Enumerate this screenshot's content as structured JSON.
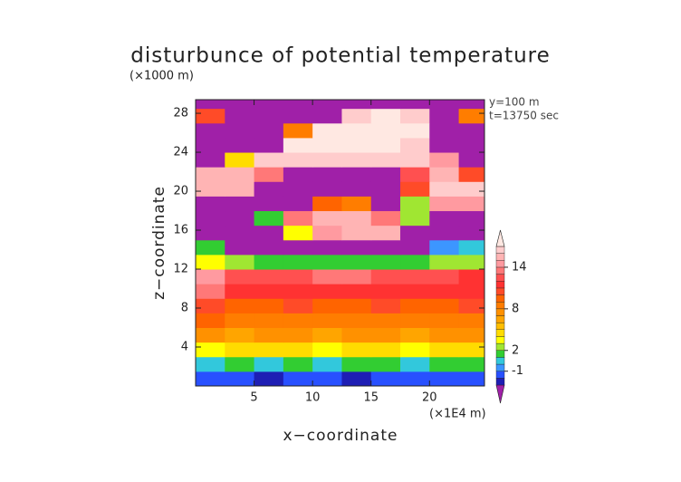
{
  "chart_data": {
    "type": "contour",
    "title": "disturbunce of potential temperature",
    "y_unit": "(×1000 m)",
    "x_unit": "(×1E4 m)",
    "annotations": [
      "y=100 m",
      "t=13750 sec"
    ],
    "x_label": "x−coordinate",
    "y_label": "z−coordinate",
    "xlim": [
      0,
      24.7
    ],
    "ylim": [
      0,
      29.4
    ],
    "xticks": [
      5,
      10,
      15,
      20
    ],
    "yticks": [
      4,
      8,
      12,
      16,
      20,
      24,
      28
    ],
    "x_edges": [
      0,
      2.5,
      5,
      7.5,
      10,
      12.5,
      15,
      17.5,
      20,
      22.5,
      25
    ],
    "y_edges": [
      0,
      1.5,
      3,
      4.5,
      6,
      7.5,
      9,
      10.5,
      12,
      13.5,
      15,
      16.5,
      18,
      19.5,
      21,
      22.5,
      24,
      25.5,
      27,
      28.5,
      30
    ],
    "z": [
      [
        -2,
        -2,
        -3,
        -2,
        -2,
        -3,
        -2,
        -2,
        -2,
        -2
      ],
      [
        0,
        1,
        0,
        1,
        0,
        1,
        1,
        0,
        1,
        1
      ],
      [
        3,
        4,
        4,
        4,
        3,
        4,
        4,
        3,
        4,
        4
      ],
      [
        7,
        6,
        7,
        7,
        6,
        7,
        7,
        6,
        7,
        7
      ],
      [
        9,
        8,
        8,
        8,
        8,
        8,
        8,
        8,
        8,
        8
      ],
      [
        10,
        9,
        9,
        10,
        9,
        9,
        10,
        9,
        9,
        10
      ],
      [
        13,
        11,
        11,
        11,
        11,
        11,
        11,
        11,
        11,
        11
      ],
      [
        14,
        12,
        12,
        12,
        13,
        13,
        12,
        12,
        12,
        11
      ],
      [
        3,
        2,
        1,
        1,
        1,
        1,
        1,
        1,
        2,
        2
      ],
      [
        1,
        -4,
        -4,
        -4,
        -4,
        -4,
        -4,
        -4,
        -1,
        0
      ],
      [
        -4,
        -4,
        -4,
        3,
        14,
        15,
        15,
        -4,
        -4,
        -4
      ],
      [
        -4,
        -4,
        1,
        13,
        15,
        15,
        13,
        2,
        -4,
        -4
      ],
      [
        -4,
        -4,
        -4,
        -4,
        9,
        8,
        -4,
        2,
        14,
        14
      ],
      [
        15,
        15,
        -4,
        -4,
        -4,
        -4,
        -4,
        10,
        16,
        16
      ],
      [
        15,
        15,
        13,
        -4,
        -4,
        -4,
        -4,
        12,
        15,
        10
      ],
      [
        -4,
        4,
        16,
        16,
        16,
        16,
        16,
        16,
        14,
        -4
      ],
      [
        -4,
        -4,
        -4,
        17,
        17,
        17,
        17,
        16,
        -4,
        -4
      ],
      [
        -4,
        -4,
        -4,
        8,
        17,
        17,
        17,
        17,
        -4,
        -4
      ],
      [
        10,
        -4,
        -4,
        -4,
        -4,
        16,
        17,
        16,
        -4,
        8
      ],
      [
        -4,
        -4,
        -4,
        -4,
        -4,
        -4,
        -4,
        -4,
        -4,
        -4
      ]
    ],
    "levels": [
      -3,
      -2,
      -1,
      0,
      1,
      2,
      3,
      4,
      5,
      6,
      7,
      8,
      9,
      10,
      11,
      12,
      13,
      14,
      15,
      16,
      17
    ],
    "colors": [
      "#a020a8",
      "#1e1eb4",
      "#2850ff",
      "#3c96ff",
      "#32c8dc",
      "#32cd32",
      "#a0e632",
      "#ffff00",
      "#ffdc00",
      "#ffbe00",
      "#ffa500",
      "#ff9100",
      "#ff7d00",
      "#ff6400",
      "#ff4b28",
      "#ff3232",
      "#ff5050",
      "#ff7878",
      "#ff9aa0",
      "#ffb4b4",
      "#ffcccc",
      "#ffe8e2"
    ],
    "colorbar_ticks": [
      -1,
      2,
      8,
      14
    ]
  }
}
